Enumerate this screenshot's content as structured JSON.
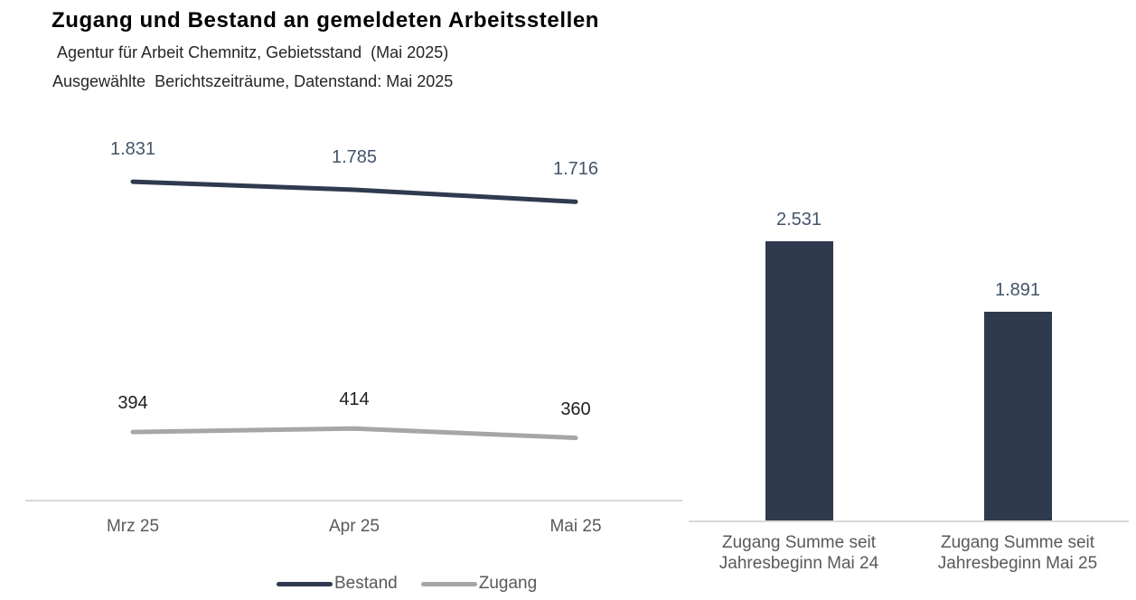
{
  "header": {
    "title": "Zugang und Bestand an gemeldeten Arbeitsstellen",
    "subtitle_region": "Agentur für Arbeit Chemnitz, Gebietsstand  (Mai 2025)",
    "subtitle_period": "Ausgewählte  Berichtszeiträume, Datenstand: Mai 2025"
  },
  "colors": {
    "bestand": "#2f3a4f",
    "zugang": "#a6a6a6",
    "bestand_label": "#44546a",
    "zugang_label": "#1f1f1f",
    "bar": "#2f3a4f",
    "bar_label": "#44546a",
    "axis_line": "#d9d9d9",
    "axis_text": "#595959"
  },
  "chart_data": [
    {
      "type": "line",
      "title": "",
      "categories": [
        "Mrz 25",
        "Apr 25",
        "Mai 25"
      ],
      "series": [
        {
          "name": "Bestand",
          "values": [
            1831,
            1785,
            1716
          ],
          "labels": [
            "1.831",
            "1.785",
            "1.716"
          ],
          "color": "#2f3a4f",
          "label_color": "#44546a"
        },
        {
          "name": "Zugang",
          "values": [
            394,
            414,
            360
          ],
          "labels": [
            "394",
            "414",
            "360"
          ],
          "color": "#a6a6a6",
          "label_color": "#1f1f1f"
        }
      ],
      "ylim": [
        0,
        2200
      ],
      "grid": false,
      "data_labels": true,
      "legend_position": "bottom"
    },
    {
      "type": "bar",
      "title": "",
      "categories": [
        "Zugang Summe seit\nJahresbeginn Mai 24",
        "Zugang Summe seit\nJahresbeginn Mai 25"
      ],
      "values": [
        2531,
        1891
      ],
      "labels": [
        "2.531",
        "1.891"
      ],
      "ylim": [
        0,
        2830
      ],
      "grid": false,
      "bar_color": "#2f3a4f",
      "data_labels": true
    }
  ]
}
